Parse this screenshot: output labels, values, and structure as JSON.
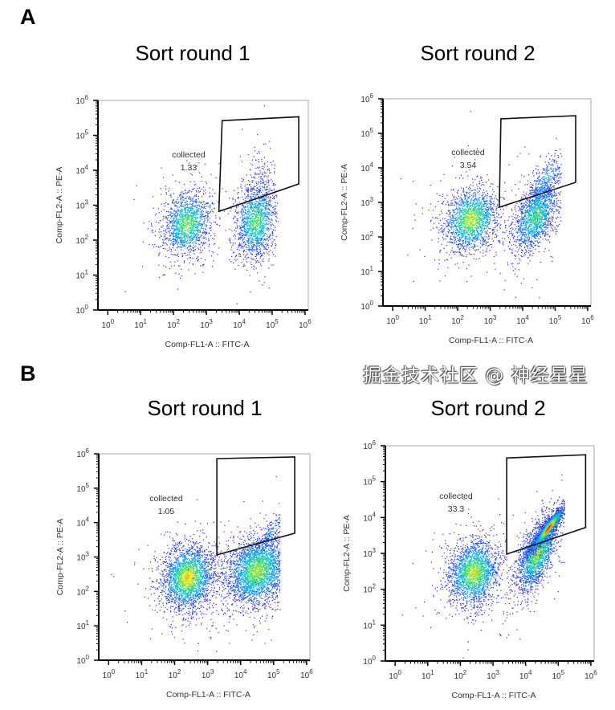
{
  "figure": {
    "panel_labels": [
      "A",
      "B"
    ],
    "watermark": "掘金技术社区 @ 神经星星"
  },
  "chart_data": [
    {
      "type": "scatter",
      "panel": "A",
      "title": "Sort round 1",
      "xlabel": "Comp-FL1-A :: FITC-A",
      "ylabel": "Comp-FL2-A :: PE-A",
      "xscale": "log",
      "yscale": "log",
      "xlim_log10": [
        -0.3,
        6.1
      ],
      "ylim_log10": [
        0,
        6
      ],
      "tick_exponents": [
        "0",
        "1",
        "2",
        "3",
        "4",
        "5",
        "6"
      ],
      "gate": {
        "label": "collected",
        "value": "1.33",
        "vertices_log10": [
          [
            3.48,
            5.42
          ],
          [
            5.81,
            5.53
          ],
          [
            5.81,
            3.61
          ],
          [
            3.38,
            2.82
          ]
        ]
      },
      "populations": [
        {
          "cx": 2.4,
          "cy": 2.45,
          "sx": 0.35,
          "sy": 0.45,
          "rho": 0.1,
          "n": 1500,
          "peak": 0.6
        },
        {
          "cx": 4.5,
          "cy": 2.55,
          "sx": 0.3,
          "sy": 0.55,
          "rho": 0.1,
          "n": 1500,
          "peak": 0.55
        },
        {
          "cx": 4.6,
          "cy": 3.6,
          "sx": 0.25,
          "sy": 0.5,
          "rho": 0.3,
          "n": 120,
          "peak": 0.05
        }
      ]
    },
    {
      "type": "scatter",
      "panel": "A",
      "title": "Sort round 2",
      "xlabel": "Comp-FL1-A :: FITC-A",
      "ylabel": "Comp-FL2-A :: PE-A",
      "xscale": "log",
      "yscale": "log",
      "xlim_log10": [
        -0.3,
        6.1
      ],
      "ylim_log10": [
        0,
        6
      ],
      "tick_exponents": [
        "0",
        "1",
        "2",
        "3",
        "4",
        "5",
        "6"
      ],
      "gate": {
        "label": "collected",
        "value": "3.54",
        "vertices_log10": [
          [
            3.33,
            5.42
          ],
          [
            5.63,
            5.51
          ],
          [
            5.63,
            3.58
          ],
          [
            3.28,
            2.86
          ]
        ]
      },
      "populations": [
        {
          "cx": 2.4,
          "cy": 2.5,
          "sx": 0.4,
          "sy": 0.45,
          "rho": 0.15,
          "n": 1800,
          "peak": 0.7
        },
        {
          "cx": 4.4,
          "cy": 2.6,
          "sx": 0.35,
          "sy": 0.5,
          "rho": 0.5,
          "n": 1600,
          "peak": 0.5
        },
        {
          "cx": 4.7,
          "cy": 3.6,
          "sx": 0.3,
          "sy": 0.4,
          "rho": 0.7,
          "n": 350,
          "peak": 0.3
        }
      ]
    },
    {
      "type": "scatter",
      "panel": "B",
      "title": "Sort round 1",
      "xlabel": "Comp-FL1-A :: FITC-A",
      "ylabel": "Comp-FL2-A :: PE-A",
      "xscale": "log",
      "yscale": "log",
      "xlim_log10": [
        -0.3,
        6.1
      ],
      "ylim_log10": [
        0,
        6
      ],
      "tick_exponents": [
        "0",
        "1",
        "2",
        "3",
        "4",
        "5",
        "6"
      ],
      "gate": {
        "label": "collected",
        "value": "1.05",
        "vertices_log10": [
          [
            3.28,
            5.86
          ],
          [
            5.64,
            5.91
          ],
          [
            5.64,
            3.69
          ],
          [
            3.28,
            3.06
          ]
        ]
      },
      "populations": [
        {
          "cx": 2.4,
          "cy": 2.4,
          "sx": 0.38,
          "sy": 0.45,
          "rho": 0.1,
          "n": 2500,
          "peak": 0.8
        },
        {
          "cx": 4.5,
          "cy": 2.6,
          "sx": 0.45,
          "sy": 0.5,
          "rho": 0.2,
          "n": 3000,
          "peak": 0.65
        },
        {
          "cx": 4.9,
          "cy": 3.7,
          "sx": 0.25,
          "sy": 0.35,
          "rho": 0.9,
          "n": 150,
          "peak": 0.2
        }
      ]
    },
    {
      "type": "scatter",
      "panel": "B",
      "title": "Sort round 2",
      "xlabel": "Comp-FL1-A :: FITC-A",
      "ylabel": "Comp-FL2-A :: PE-A",
      "xscale": "log",
      "yscale": "log",
      "xlim_log10": [
        -0.3,
        6.1
      ],
      "ylim_log10": [
        0,
        6
      ],
      "tick_exponents": [
        "0",
        "1",
        "2",
        "3",
        "4",
        "5",
        "6"
      ],
      "gate": {
        "label": "collected",
        "value": "33.3",
        "vertices_log10": [
          [
            3.42,
            5.66
          ],
          [
            5.84,
            5.75
          ],
          [
            5.84,
            3.72
          ],
          [
            3.42,
            2.98
          ]
        ]
      },
      "populations": [
        {
          "cx": 2.4,
          "cy": 2.45,
          "sx": 0.38,
          "sy": 0.45,
          "rho": 0.1,
          "n": 2200,
          "peak": 0.7
        },
        {
          "cx": 4.35,
          "cy": 3.0,
          "sx": 0.3,
          "sy": 0.5,
          "rho": 0.6,
          "n": 2000,
          "peak": 0.65
        },
        {
          "cx": 4.7,
          "cy": 3.7,
          "sx": 0.25,
          "sy": 0.3,
          "rho": 0.93,
          "n": 1600,
          "peak": 1.0
        }
      ]
    }
  ]
}
